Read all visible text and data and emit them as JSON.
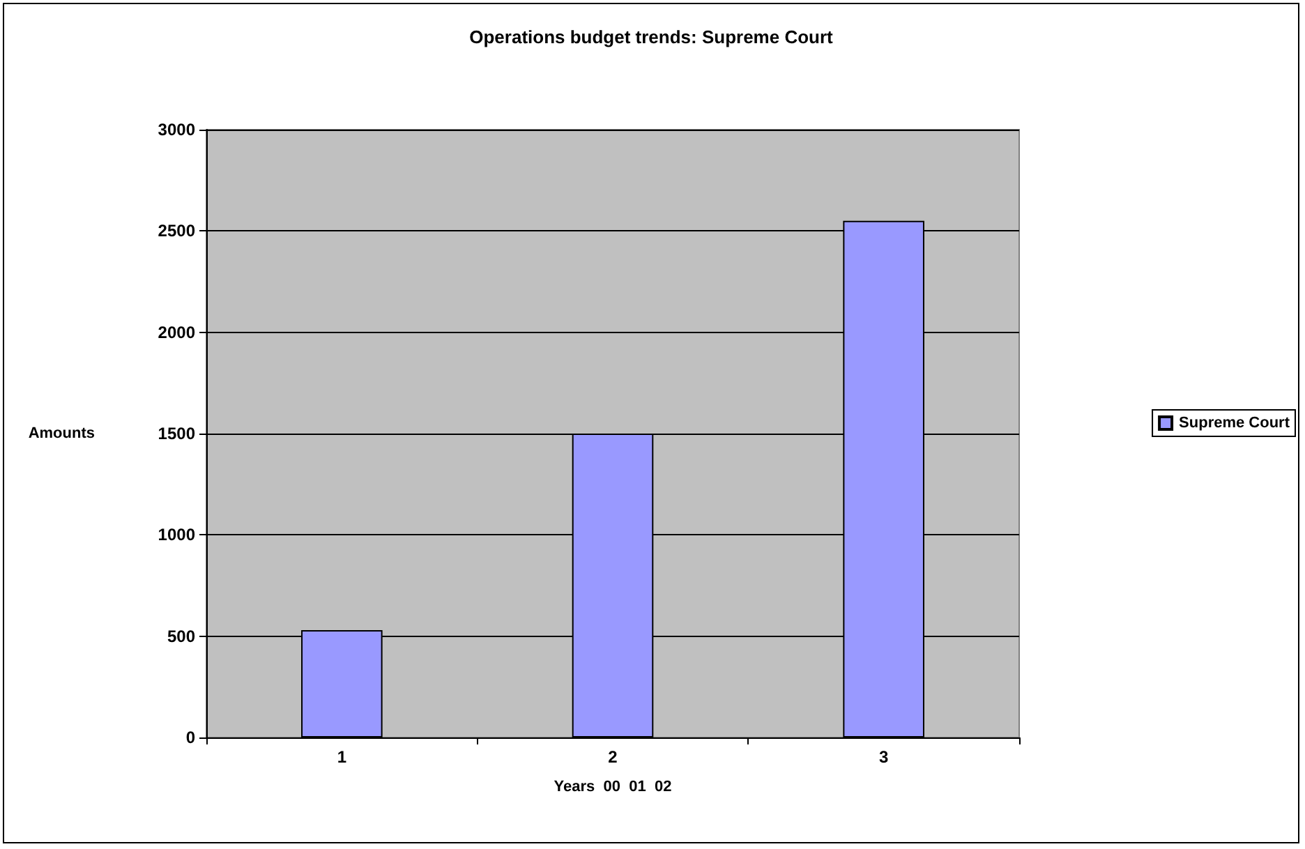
{
  "chart_data": {
    "type": "bar",
    "title": "Operations budget trends: Supreme Court",
    "xlabel": "Years  00  01  02",
    "ylabel": "Amounts",
    "categories": [
      "1",
      "2",
      "3"
    ],
    "series": [
      {
        "name": "Supreme Court",
        "color": "#9999ff",
        "values": [
          530,
          1500,
          2550
        ]
      }
    ],
    "ylim": [
      0,
      3000
    ],
    "yticks": [
      0,
      500,
      1000,
      1500,
      2000,
      2500,
      3000
    ],
    "grid": "y",
    "legend": "right"
  }
}
